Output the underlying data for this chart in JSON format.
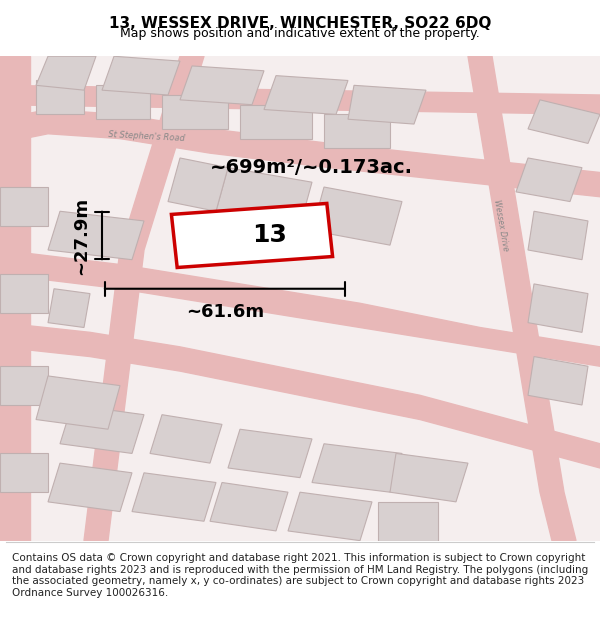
{
  "title": "13, WESSEX DRIVE, WINCHESTER, SO22 6DQ",
  "subtitle": "Map shows position and indicative extent of the property.",
  "footer": "Contains OS data © Crown copyright and database right 2021. This information is subject to Crown copyright and database rights 2023 and is reproduced with the permission of HM Land Registry. The polygons (including the associated geometry, namely x, y co-ordinates) are subject to Crown copyright and database rights 2023 Ordnance Survey 100026316.",
  "bg_color": "#f5f0f0",
  "map_bg": "#f8f4f4",
  "road_color": "#e8a0a0",
  "building_color": "#d8d0d0",
  "building_edge": "#c0b0b0",
  "highlight_color": "#cc0000",
  "highlight_fill": "#ffffff",
  "area_text": "~699m²/~0.173ac.",
  "number_label": "13",
  "width_label": "~61.6m",
  "height_label": "~27.9m",
  "title_fontsize": 11,
  "subtitle_fontsize": 9,
  "footer_fontsize": 7.5,
  "label_fontsize": 13,
  "area_fontsize": 14,
  "num_label_fontsize": 18
}
